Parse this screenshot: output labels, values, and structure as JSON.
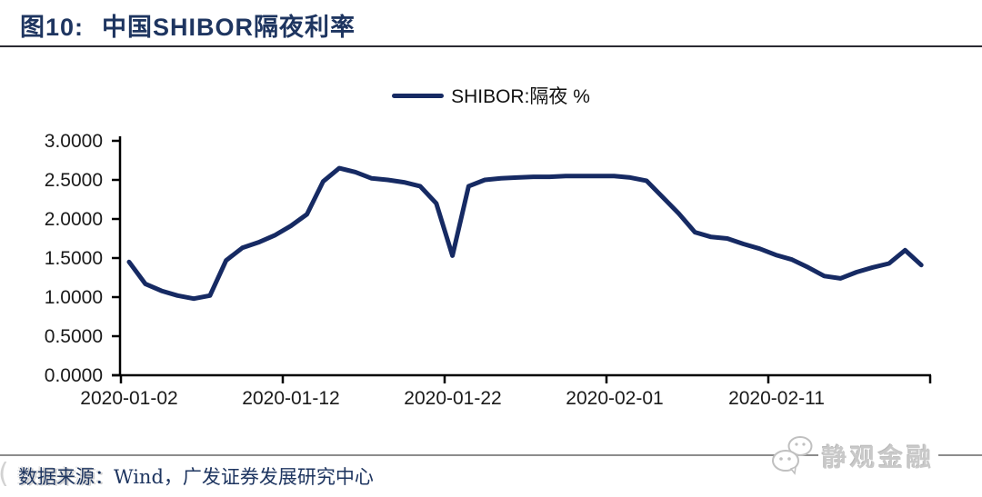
{
  "header": {
    "figure_label": "图10:",
    "title": "中国SHIBOR隔夜利率"
  },
  "legend": {
    "label": "SHIBOR:隔夜 %"
  },
  "footer": {
    "source_prefix": "数据来源：",
    "source_text": "Wind，广发证券发展研究中心",
    "watermark_text": "静观金融"
  },
  "colors": {
    "navy_title": "#1e3560",
    "line": "#162a63",
    "axis": "#000000",
    "rule_dark": "#2a2a32",
    "rule_gray": "#8c8c8c",
    "watermark_gray": "#c9c9c9"
  },
  "chart_data": {
    "type": "line",
    "title": "中国SHIBOR隔夜利率",
    "xlabel": "",
    "ylabel": "",
    "ylim": [
      0.0,
      3.0
    ],
    "y_tick_step": 0.5,
    "y_tick_labels": [
      "0.0000",
      "0.5000",
      "1.0000",
      "1.5000",
      "2.0000",
      "2.5000",
      "3.0000"
    ],
    "x_ticks": [
      {
        "label": "2020-01-02",
        "day": 0
      },
      {
        "label": "2020-01-12",
        "day": 10
      },
      {
        "label": "2020-01-22",
        "day": 20
      },
      {
        "label": "2020-02-01",
        "day": 30
      },
      {
        "label": "2020-02-11",
        "day": 40
      },
      {
        "label": "",
        "day": 50
      }
    ],
    "grid": false,
    "legend_position": "top-center",
    "series": [
      {
        "name": "SHIBOR:隔夜 %",
        "x": [
          "2020-01-02",
          "2020-01-03",
          "2020-01-04",
          "2020-01-05",
          "2020-01-06",
          "2020-01-07",
          "2020-01-08",
          "2020-01-09",
          "2020-01-10",
          "2020-01-11",
          "2020-01-12",
          "2020-01-13",
          "2020-01-14",
          "2020-01-15",
          "2020-01-16",
          "2020-01-17",
          "2020-01-18",
          "2020-01-19",
          "2020-01-20",
          "2020-01-21",
          "2020-01-22",
          "2020-01-23",
          "2020-01-24",
          "2020-01-25",
          "2020-01-26",
          "2020-01-27",
          "2020-01-28",
          "2020-01-29",
          "2020-01-30",
          "2020-01-31",
          "2020-02-01",
          "2020-02-02",
          "2020-02-03",
          "2020-02-04",
          "2020-02-05",
          "2020-02-06",
          "2020-02-07",
          "2020-02-08",
          "2020-02-09",
          "2020-02-10",
          "2020-02-11",
          "2020-02-12",
          "2020-02-13",
          "2020-02-14",
          "2020-02-15",
          "2020-02-16",
          "2020-02-17",
          "2020-02-18",
          "2020-02-19",
          "2020-02-20"
        ],
        "values": [
          1.45,
          1.17,
          1.08,
          1.02,
          0.98,
          1.02,
          1.47,
          1.63,
          1.7,
          1.79,
          1.91,
          2.06,
          2.48,
          2.65,
          2.6,
          2.52,
          2.5,
          2.47,
          2.42,
          2.2,
          1.53,
          2.42,
          2.5,
          2.52,
          2.53,
          2.54,
          2.54,
          2.55,
          2.55,
          2.55,
          2.55,
          2.53,
          2.49,
          2.28,
          2.07,
          1.83,
          1.77,
          1.75,
          1.68,
          1.62,
          1.54,
          1.48,
          1.38,
          1.27,
          1.24,
          1.32,
          1.38,
          1.43,
          1.6,
          1.41
        ]
      }
    ]
  }
}
